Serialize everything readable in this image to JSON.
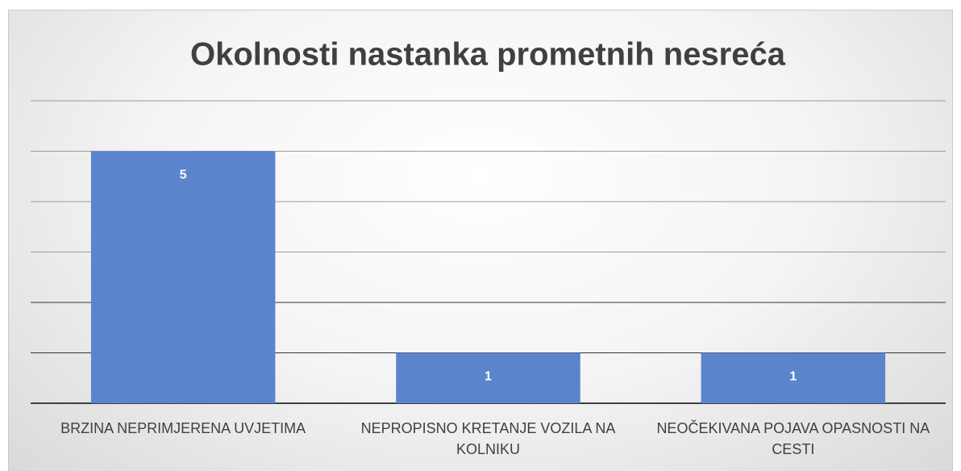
{
  "chart_data": {
    "type": "bar",
    "title": "Okolnosti nastanka prometnih nesreća",
    "categories": [
      "BRZINA NEPRIMJERENA UVJETIMA",
      "NEPROPISNO KRETANJE VOZILA NA KOLNIKU",
      "NEOČEKIVANA POJAVA OPASNOSTI NA CESTI"
    ],
    "values": [
      5,
      1,
      1
    ],
    "color": "#5b84cd",
    "ylim": [
      0,
      6
    ],
    "yticks": [
      0,
      1,
      2,
      3,
      4,
      5,
      6
    ],
    "grid": true
  }
}
